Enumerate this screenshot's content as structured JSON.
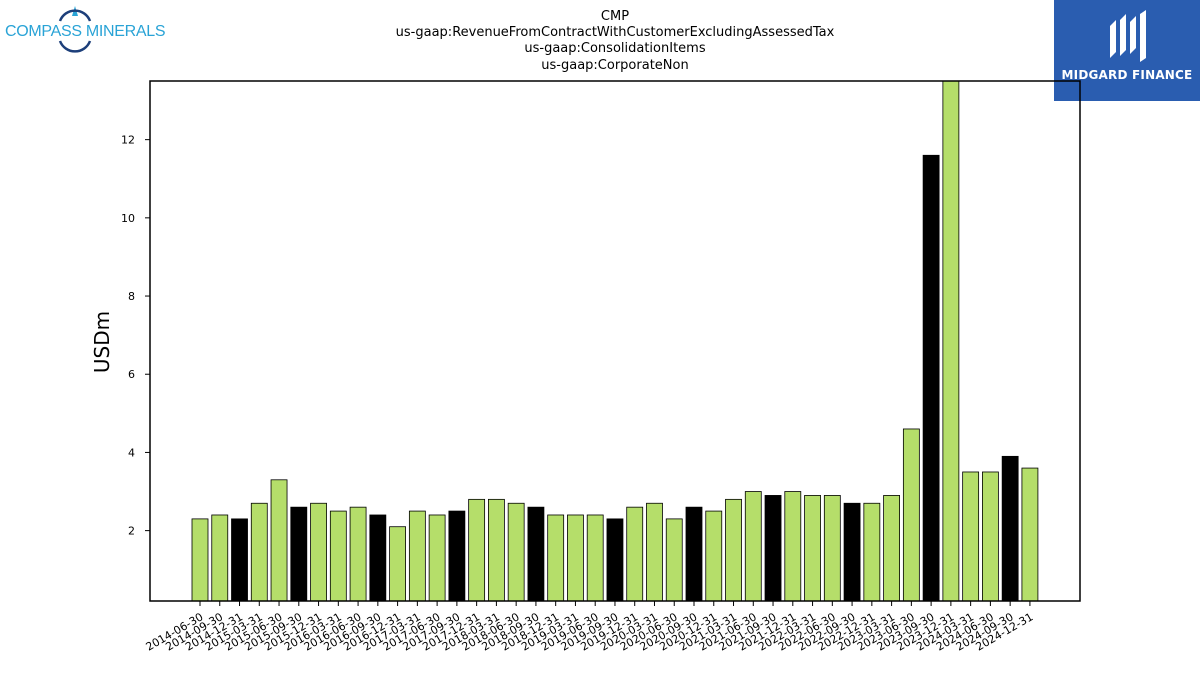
{
  "logos": {
    "left_text": "COMPASS MINERALS",
    "right_text": "MIDGARD FINANCE"
  },
  "chart_data": {
    "type": "bar",
    "title_lines": [
      "CMP",
      "us-gaap:RevenueFromContractWithCustomerExcludingAssessedTax",
      "us-gaap:ConsolidationItems",
      "us-gaap:CorporateNon"
    ],
    "xlabel": "",
    "ylabel": "USDm",
    "ylim": [
      0.2,
      13.5
    ],
    "yticks": [
      2,
      4,
      6,
      8,
      10,
      12
    ],
    "grid": false,
    "categories": [
      "2014-06-30",
      "2014-09-30",
      "2014-12-31",
      "2015-03-31",
      "2015-06-30",
      "2015-09-30",
      "2015-12-31",
      "2016-03-31",
      "2016-06-30",
      "2016-09-30",
      "2016-12-31",
      "2017-03-31",
      "2017-06-30",
      "2017-09-30",
      "2017-12-31",
      "2018-03-31",
      "2018-06-30",
      "2018-09-30",
      "2018-12-31",
      "2019-03-31",
      "2019-06-30",
      "2019-09-30",
      "2019-12-31",
      "2020-03-31",
      "2020-06-30",
      "2020-09-30",
      "2020-12-31",
      "2021-03-31",
      "2021-06-30",
      "2021-09-30",
      "2021-12-31",
      "2022-03-31",
      "2022-06-30",
      "2022-09-30",
      "2022-12-31",
      "2023-03-31",
      "2023-06-30",
      "2023-09-30",
      "2023-12-31",
      "2024-03-31",
      "2024-06-30",
      "2024-09-30",
      "2024-12-31"
    ],
    "values": [
      2.3,
      2.4,
      2.3,
      2.7,
      3.3,
      2.6,
      2.7,
      2.5,
      2.6,
      2.4,
      2.1,
      2.5,
      2.4,
      2.5,
      2.8,
      2.8,
      2.7,
      2.6,
      2.4,
      2.4,
      2.4,
      2.3,
      2.6,
      2.7,
      2.3,
      2.6,
      2.5,
      2.8,
      3.0,
      2.9,
      3.0,
      2.9,
      2.9,
      2.7,
      2.7,
      2.9,
      4.6,
      11.6,
      13.5,
      3.5,
      3.5,
      3.9,
      3.6
    ],
    "bar_colors": {
      "quarter": "#b5de6a",
      "year_end": "#000000"
    },
    "year_end_flags": [
      false,
      false,
      true,
      false,
      false,
      true,
      false,
      false,
      false,
      true,
      false,
      false,
      false,
      true,
      false,
      false,
      false,
      true,
      false,
      false,
      false,
      true,
      false,
      false,
      false,
      true,
      false,
      false,
      false,
      true,
      false,
      false,
      false,
      true,
      false,
      false,
      false,
      true,
      false,
      false,
      false,
      true,
      false
    ]
  }
}
